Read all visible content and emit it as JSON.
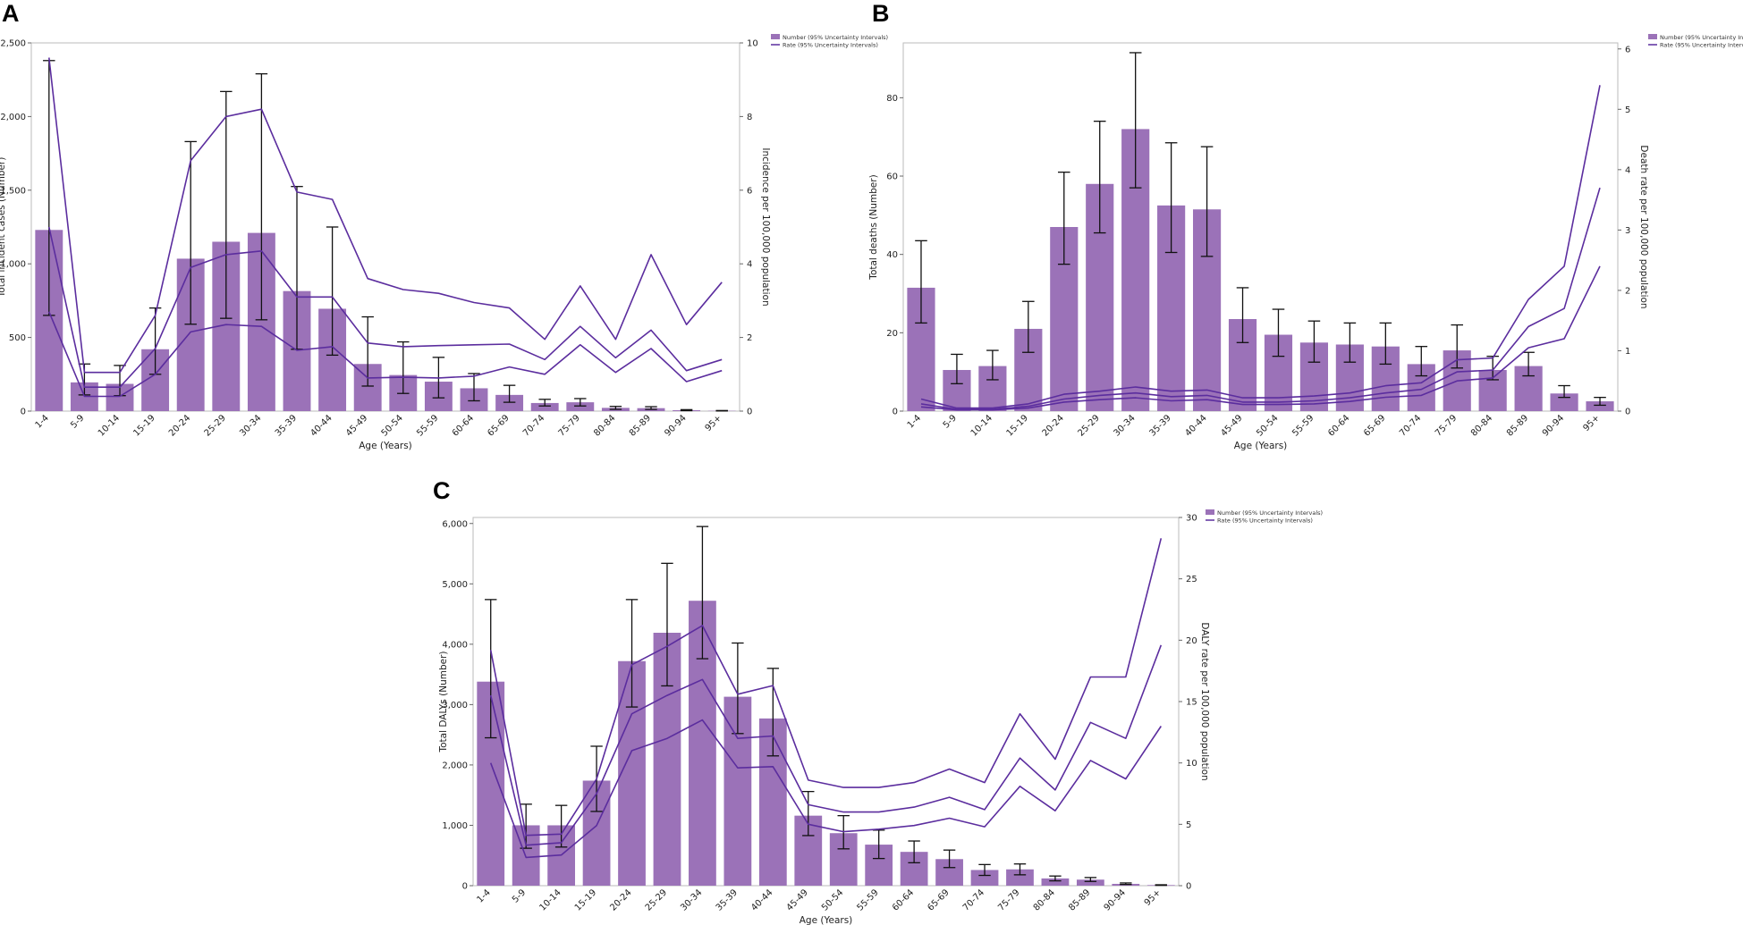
{
  "colors": {
    "bar": "#9b72b8",
    "line": "#5b2d9e",
    "error": "#111111",
    "frame": "#bbbbbb"
  },
  "legend": {
    "number": "Number (95% Uncertainty Intervals)",
    "rate": "Rate (95% Uncertainty Intervals)"
  },
  "chart_data": [
    {
      "panel": "A",
      "type": "bar",
      "xlabel": "Age (Years)",
      "ylabel": "Total incident cases (Number)",
      "y2label": "Incidence per 100,000 population",
      "categories": [
        "1-4",
        "5-9",
        "10-14",
        "15-19",
        "20-24",
        "25-29",
        "30-34",
        "35-39",
        "40-44",
        "45-49",
        "50-54",
        "55-59",
        "60-64",
        "65-69",
        "70-74",
        "75-79",
        "80-84",
        "85-89",
        "90-94",
        "95+"
      ],
      "ylim": [
        0,
        2500
      ],
      "yticks": [
        0,
        500,
        1000,
        1500,
        2000,
        2500
      ],
      "ytick_labels": [
        "0",
        "500",
        "1,000",
        "1,500",
        "2,000",
        "2,500"
      ],
      "y2lim": [
        0,
        10
      ],
      "y2ticks": [
        0,
        2,
        4,
        6,
        8,
        10
      ],
      "y2tick_labels": [
        "0",
        "2",
        "4",
        "6",
        "8",
        "10"
      ],
      "series": [
        {
          "name": "Number",
          "type": "bar",
          "values": [
            1230,
            195,
            185,
            420,
            1035,
            1150,
            1210,
            815,
            695,
            320,
            245,
            200,
            155,
            110,
            55,
            60,
            22,
            20,
            6,
            2
          ],
          "lower": [
            650,
            110,
            105,
            250,
            590,
            630,
            620,
            420,
            380,
            170,
            120,
            90,
            70,
            60,
            35,
            35,
            12,
            12,
            3,
            1
          ],
          "upper": [
            2380,
            320,
            310,
            700,
            1830,
            2170,
            2290,
            1525,
            1250,
            640,
            470,
            365,
            255,
            175,
            80,
            85,
            32,
            30,
            10,
            4
          ]
        },
        {
          "name": "Rate",
          "type": "line",
          "axis": "right",
          "values": [
            5.0,
            0.65,
            0.65,
            1.7,
            3.9,
            4.25,
            4.35,
            3.1,
            3.1,
            1.85,
            1.75,
            1.78,
            1.8,
            1.82,
            1.4,
            2.3,
            1.45,
            2.2,
            1.1,
            1.4
          ],
          "lower": [
            2.7,
            0.4,
            0.4,
            1.0,
            2.15,
            2.35,
            2.3,
            1.65,
            1.75,
            0.9,
            0.92,
            0.9,
            0.95,
            1.2,
            1.0,
            1.8,
            1.05,
            1.7,
            0.8,
            1.1
          ],
          "upper": [
            9.6,
            1.05,
            1.05,
            2.6,
            6.8,
            8.0,
            8.2,
            5.95,
            5.75,
            3.6,
            3.3,
            3.2,
            2.95,
            2.8,
            1.95,
            3.4,
            1.95,
            4.25,
            2.35,
            3.5
          ]
        }
      ]
    },
    {
      "panel": "B",
      "type": "bar",
      "xlabel": "Age (Years)",
      "ylabel": "Total deaths (Number)",
      "y2label": "Death rate per 100,000 population",
      "categories": [
        "1-4",
        "5-9",
        "10-14",
        "15-19",
        "20-24",
        "25-29",
        "30-34",
        "35-39",
        "40-44",
        "45-49",
        "50-54",
        "55-59",
        "60-64",
        "65-69",
        "70-74",
        "75-79",
        "80-84",
        "85-89",
        "90-94",
        "95+"
      ],
      "ylim": [
        0,
        94
      ],
      "yticks": [
        0,
        20,
        40,
        60,
        80
      ],
      "ytick_labels": [
        "0",
        "20",
        "40",
        "60",
        "80"
      ],
      "y2lim": [
        0,
        6.1
      ],
      "y2ticks": [
        0,
        1,
        2,
        3,
        4,
        5,
        6
      ],
      "y2tick_labels": [
        "0",
        "1",
        "2",
        "3",
        "4",
        "5",
        "6"
      ],
      "series": [
        {
          "name": "Number",
          "type": "bar",
          "values": [
            31.5,
            10.5,
            11.5,
            21,
            47,
            58,
            72,
            52.5,
            51.5,
            23.5,
            19.5,
            17.5,
            17,
            16.5,
            12,
            15.5,
            10.5,
            11.5,
            4.5,
            2.5
          ],
          "lower": [
            22.5,
            7,
            8,
            15,
            37.5,
            45.5,
            57,
            40.5,
            39.5,
            17.5,
            14,
            12.5,
            12.5,
            12,
            9,
            11,
            8,
            9,
            3.5,
            1.5
          ],
          "upper": [
            43.5,
            14.5,
            15.5,
            28,
            61,
            74,
            91.5,
            68.5,
            67.5,
            31.5,
            26,
            23,
            22.5,
            22.5,
            16.5,
            22,
            14,
            15,
            6.5,
            3.5
          ]
        },
        {
          "name": "Rate",
          "type": "line",
          "axis": "right",
          "values": [
            0.12,
            0.03,
            0.03,
            0.08,
            0.2,
            0.26,
            0.3,
            0.24,
            0.26,
            0.15,
            0.15,
            0.17,
            0.22,
            0.3,
            0.36,
            0.65,
            0.68,
            1.4,
            1.7,
            3.7
          ],
          "lower": [
            0.07,
            0.02,
            0.02,
            0.05,
            0.15,
            0.19,
            0.22,
            0.17,
            0.19,
            0.11,
            0.11,
            0.12,
            0.16,
            0.23,
            0.26,
            0.5,
            0.55,
            1.05,
            1.2,
            2.4
          ],
          "upper": [
            0.2,
            0.05,
            0.05,
            0.12,
            0.28,
            0.33,
            0.4,
            0.33,
            0.35,
            0.22,
            0.22,
            0.25,
            0.3,
            0.42,
            0.47,
            0.85,
            0.88,
            1.85,
            2.4,
            5.4
          ]
        }
      ]
    },
    {
      "panel": "C",
      "type": "bar",
      "xlabel": "Age (Years)",
      "ylabel": "Total DALYs (Number)",
      "y2label": "DALY rate per 100,000 population",
      "categories": [
        "1-4",
        "5-9",
        "10-14",
        "15-19",
        "20-24",
        "25-29",
        "30-34",
        "35-39",
        "40-44",
        "45-49",
        "50-54",
        "55-59",
        "60-64",
        "65-69",
        "70-74",
        "75-79",
        "80-84",
        "85-89",
        "90-94",
        "95+"
      ],
      "ylim": [
        0,
        6100
      ],
      "yticks": [
        0,
        1000,
        2000,
        3000,
        4000,
        5000,
        6000
      ],
      "ytick_labels": [
        "0",
        "1,000",
        "2,000",
        "3,000",
        "4,000",
        "5,000",
        "6,000"
      ],
      "y2lim": [
        0,
        30
      ],
      "y2ticks": [
        0,
        5,
        10,
        15,
        20,
        25,
        30
      ],
      "y2tick_labels": [
        "0",
        "5",
        "10",
        "15",
        "20",
        "25",
        "30"
      ],
      "series": [
        {
          "name": "Number",
          "type": "bar",
          "values": [
            3380,
            1000,
            1000,
            1740,
            3720,
            4190,
            4720,
            3130,
            2770,
            1160,
            870,
            680,
            560,
            440,
            260,
            270,
            120,
            100,
            30,
            10
          ],
          "lower": [
            2450,
            620,
            640,
            1230,
            2960,
            3310,
            3760,
            2520,
            2150,
            830,
            610,
            450,
            380,
            300,
            170,
            180,
            80,
            70,
            20,
            5
          ],
          "upper": [
            4740,
            1350,
            1330,
            2310,
            4740,
            5340,
            5950,
            4020,
            3600,
            1560,
            1160,
            920,
            740,
            590,
            350,
            360,
            160,
            135,
            45,
            15
          ]
        },
        {
          "name": "Rate",
          "type": "line",
          "axis": "right",
          "values": [
            15.5,
            3.3,
            3.5,
            7.5,
            14.0,
            15.5,
            16.8,
            12.0,
            12.2,
            6.6,
            6.0,
            6.0,
            6.4,
            7.2,
            6.2,
            10.4,
            7.8,
            13.3,
            12.0,
            19.6
          ],
          "lower": [
            10.0,
            2.3,
            2.5,
            4.9,
            11.0,
            12.0,
            13.5,
            9.6,
            9.7,
            5.0,
            4.4,
            4.6,
            4.9,
            5.5,
            4.8,
            8.1,
            6.1,
            10.2,
            8.7,
            13.0
          ],
          "upper": [
            19.2,
            4.1,
            4.2,
            8.7,
            18.0,
            19.5,
            21.2,
            15.6,
            16.3,
            8.6,
            8.0,
            8.0,
            8.4,
            9.5,
            8.4,
            14.0,
            10.3,
            17.0,
            17.0,
            28.3
          ]
        }
      ]
    }
  ]
}
